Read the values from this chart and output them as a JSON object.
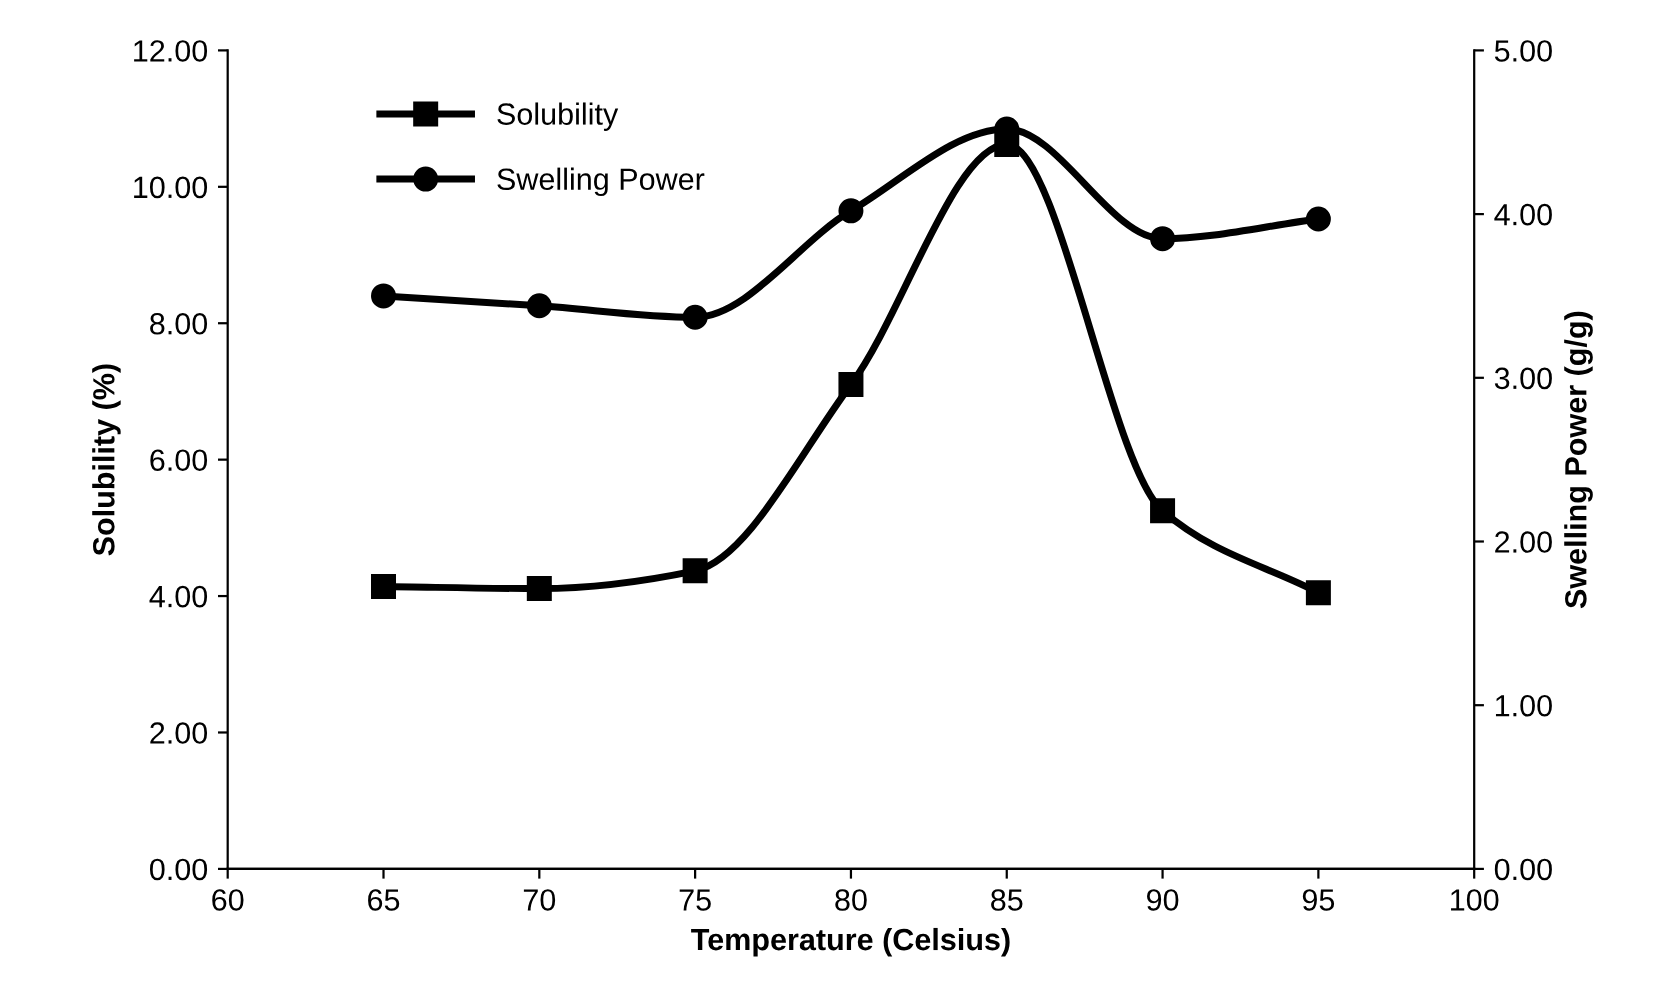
{
  "chart_data": {
    "type": "line",
    "xlabel": "Temperature (Celsius)",
    "ylabel": "Solubility (%)",
    "y2label": "Swelling Power (g/g)",
    "x": [
      65,
      70,
      75,
      80,
      85,
      90,
      95
    ],
    "series": [
      {
        "name": "Solubility",
        "color": "#000000",
        "marker": "square",
        "values": [
          4.14,
          4.11,
          4.37,
          7.1,
          10.62,
          5.25,
          4.05
        ]
      },
      {
        "name": "Swelling Power",
        "color": "#000000",
        "marker": "circle",
        "axis": "y2",
        "values": [
          3.5,
          3.44,
          3.37,
          4.02,
          4.52,
          3.85,
          3.97
        ]
      }
    ],
    "xlim": [
      60,
      100
    ],
    "xticks": [
      60,
      65,
      70,
      75,
      80,
      85,
      90,
      95,
      100
    ],
    "ylim": [
      0,
      12
    ],
    "yticks": [
      {
        "value": 0,
        "label": "0.00"
      },
      {
        "value": 2,
        "label": "2.00"
      },
      {
        "value": 4,
        "label": "4.00"
      },
      {
        "value": 6,
        "label": "6.00"
      },
      {
        "value": 8,
        "label": "8.00"
      },
      {
        "value": 10,
        "label": "10.00"
      },
      {
        "value": 12,
        "label": "12.00"
      }
    ],
    "y2lim": [
      0,
      5
    ],
    "y2ticks": [
      {
        "value": 0,
        "label": "0.00"
      },
      {
        "value": 1,
        "label": "1.00"
      },
      {
        "value": 2,
        "label": "2.00"
      },
      {
        "value": 3,
        "label": "3.00"
      },
      {
        "value": 4,
        "label": "4.00"
      },
      {
        "value": 5,
        "label": "5.00"
      }
    ],
    "legend": "top left",
    "grid": false,
    "line_style": "solid"
  }
}
